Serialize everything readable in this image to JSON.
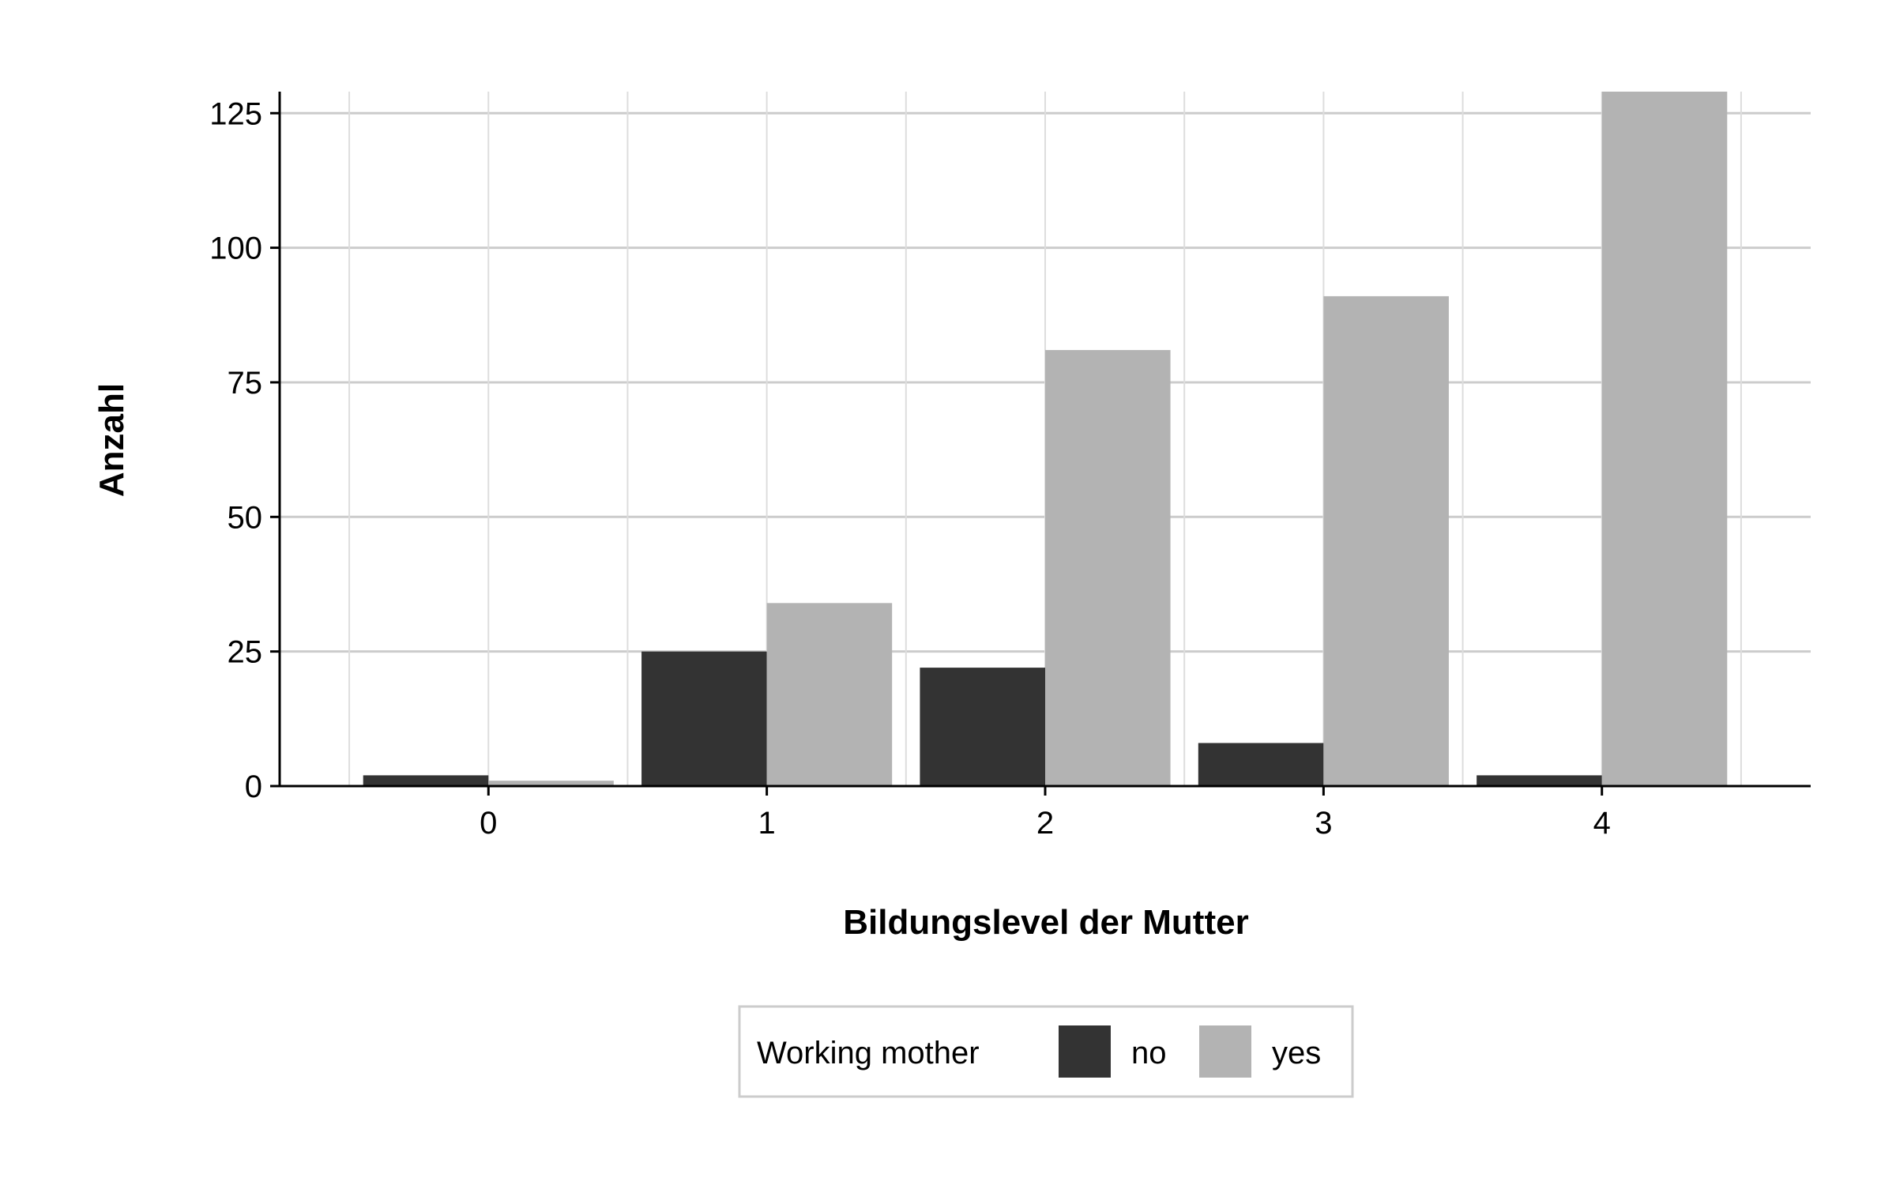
{
  "chart_data": {
    "type": "bar",
    "xlabel": "Bildungslevel der Mutter",
    "ylabel": "Anzahl",
    "categories": [
      "0",
      "1",
      "2",
      "3",
      "4"
    ],
    "ylim": [
      0,
      129
    ],
    "yticks": [
      0,
      25,
      50,
      75,
      100,
      125
    ],
    "grid": true,
    "legend_position": "bottom",
    "legend_title": "Working mother",
    "series": [
      {
        "name": "no",
        "color": "#333333",
        "values": [
          2,
          25,
          22,
          8,
          2
        ]
      },
      {
        "name": "yes",
        "color": "#b3b3b3",
        "values": [
          1,
          34,
          81,
          91,
          129
        ]
      }
    ]
  }
}
